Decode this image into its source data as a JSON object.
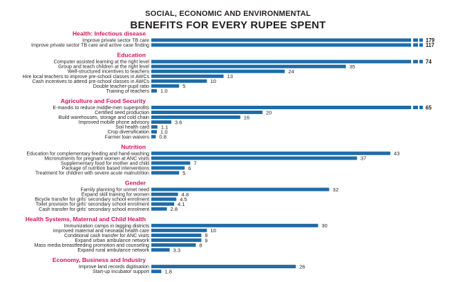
{
  "title_line1": "SOCIAL, ECONOMIC AND ENVIRONMENTAL",
  "title_line2": "BENEFITS FOR EVERY RUPEE SPENT",
  "colors": {
    "bar": "#1e6ca8",
    "section": "#d0165a",
    "text": "#231f20"
  },
  "chart_data": {
    "type": "bar",
    "orientation": "horizontal",
    "title": "SOCIAL, ECONOMIC AND ENVIRONMENTAL BENEFITS FOR EVERY RUPEE SPENT",
    "xlim": [
      0,
      43
    ],
    "axis_break": "bars exceeding the scale are drawn truncated with two gaps",
    "groups": [
      {
        "name": "Health: Infectious disease",
        "items": [
          {
            "label": "Improve private sector TB care",
            "value": 179,
            "display": "179",
            "truncated": true
          },
          {
            "label": "Improve private sector TB care and active case finding",
            "value": 117,
            "display": "117",
            "truncated": true
          }
        ]
      },
      {
        "name": "Education",
        "items": [
          {
            "label": "Computer assisted learning at the right level",
            "value": 74,
            "display": "74",
            "truncated": true
          },
          {
            "label": "Group and teach children at the right level",
            "value": 35,
            "display": "35"
          },
          {
            "label": "Well-structured incentives to teachers",
            "value": 24,
            "display": "24"
          },
          {
            "label": "Hire local teachers to improve pre-school classes in AWCs",
            "value": 13,
            "display": "13"
          },
          {
            "label": "Cash incentives to attend pre-school classes in AWCs",
            "value": 10,
            "display": "10"
          },
          {
            "label": "Double teacher-pupil ratio",
            "value": 5,
            "display": "5"
          },
          {
            "label": "Training of teachers",
            "value": 1.0,
            "display": "1.0"
          }
        ]
      },
      {
        "name": "Agriculture and Food Security",
        "items": [
          {
            "label": "E-mandis to reduce middle-men superprofits",
            "value": 65,
            "display": "65",
            "truncated": true
          },
          {
            "label": "Certified seed production",
            "value": 20,
            "display": "20"
          },
          {
            "label": "Build warehouses, storage and cold chain",
            "value": 16,
            "display": "16"
          },
          {
            "label": "Improved mobile phone advisory",
            "value": 3.6,
            "display": "3.6"
          },
          {
            "label": "Soil health card",
            "value": 1.1,
            "display": "1.1"
          },
          {
            "label": "Crop diversification",
            "value": 1.0,
            "display": "1.0"
          },
          {
            "label": "Farmer loan waivers",
            "value": 0.8,
            "display": "0.8"
          }
        ]
      },
      {
        "name": "Nutrition",
        "items": [
          {
            "label": "Education for complementary feeding and hand-washing",
            "value": 43,
            "display": "43"
          },
          {
            "label": "Micronutrients for pregnant women at ANC visits",
            "value": 37,
            "display": "37"
          },
          {
            "label": "Supplementary food for mother and child",
            "value": 7,
            "display": "7"
          },
          {
            "label": "Package of nutrition based interventions",
            "value": 6,
            "display": "6"
          },
          {
            "label": "Treatment for children with severe acute malnutrition",
            "value": 5,
            "display": "5"
          }
        ]
      },
      {
        "name": "Gender",
        "items": [
          {
            "label": "Family planning for unmet need",
            "value": 32,
            "display": "32"
          },
          {
            "label": "Expand skill training for women",
            "value": 4.8,
            "display": "4.8"
          },
          {
            "label": "Bicycle transfer for girls' secondary school enrolment",
            "value": 4.5,
            "display": "4.5"
          },
          {
            "label": "Toilet provision for girls' secondary school enrolment",
            "value": 4.1,
            "display": "4.1"
          },
          {
            "label": "Cash transfer for girls' secondary school enrolment",
            "value": 2.8,
            "display": "2.8"
          }
        ]
      },
      {
        "name": "Health Systems, Maternal and Child Health",
        "items": [
          {
            "label": "Immunization camps in lagging districts",
            "value": 30,
            "display": "30"
          },
          {
            "label": "Improved maternal and neonatal health care",
            "value": 10,
            "display": "10"
          },
          {
            "label": "Conditional cash transfer for ANC visits",
            "value": 9,
            "display": "9"
          },
          {
            "label": "Expand urban ambulance network",
            "value": 9,
            "display": "9"
          },
          {
            "label": "Mass media breastfeeding promotion and counseling",
            "value": 8,
            "display": "8"
          },
          {
            "label": "Expand rural ambulance network",
            "value": 3.3,
            "display": "3.3"
          }
        ]
      },
      {
        "name": "Economy, Business and Industry",
        "items": [
          {
            "label": "Improve land records digitisation",
            "value": 26,
            "display": "26"
          },
          {
            "label": "Start-up incubator support",
            "value": 1.8,
            "display": "1.8"
          }
        ]
      }
    ]
  }
}
